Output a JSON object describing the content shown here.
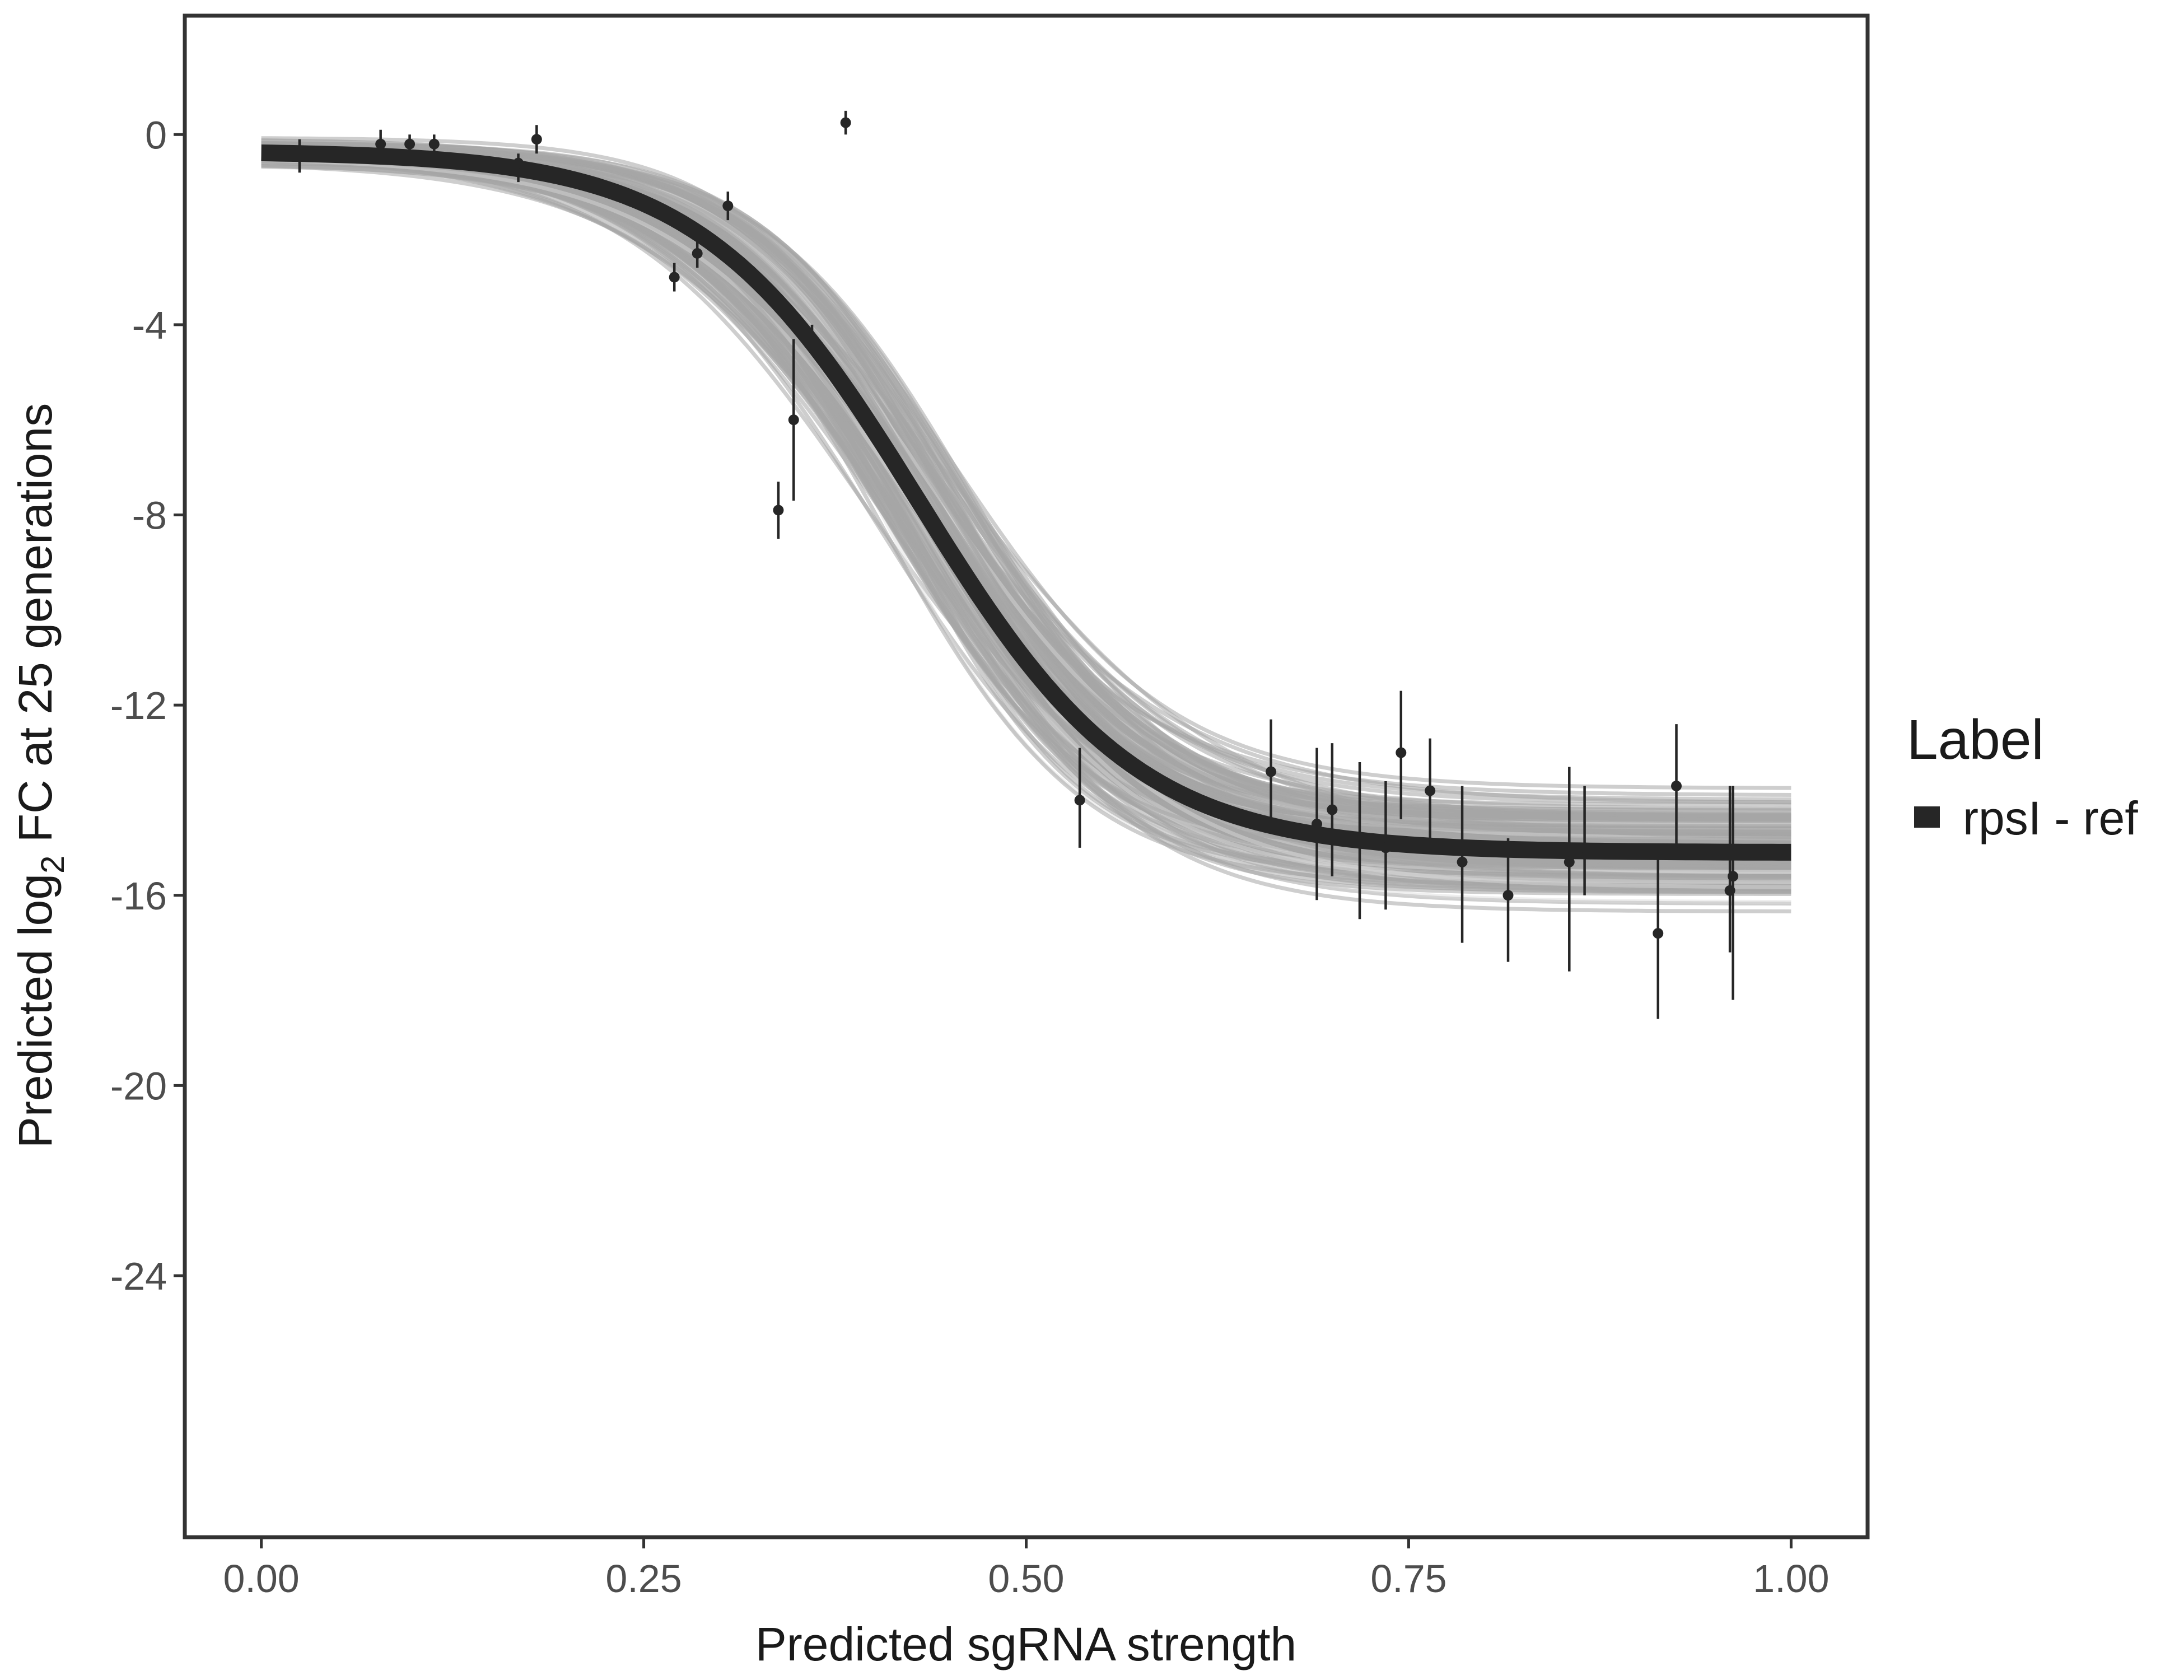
{
  "chart_data": {
    "type": "line",
    "title": "",
    "xlabel": "Predicted sgRNA strength",
    "ylabel_parts": [
      "Predicted  log",
      "2",
      " FC at 25 generations"
    ],
    "xlim": [
      -0.05,
      1.05
    ],
    "ylim": [
      -29.5,
      2.5
    ],
    "x_ticks": [
      0.0,
      0.25,
      0.5,
      0.75,
      1.0
    ],
    "x_tick_labels": [
      "0.00",
      "0.25",
      "0.50",
      "0.75",
      "1.00"
    ],
    "y_ticks": [
      0,
      -4,
      -8,
      -12,
      -16,
      -20,
      -24
    ],
    "y_tick_labels": [
      "0",
      "-4",
      "-8",
      "-12",
      "-16",
      "-20",
      "-24"
    ],
    "grid": false,
    "legend": {
      "title": "Label",
      "entries": [
        {
          "label": "rpsI - ref",
          "color": "#262626"
        }
      ],
      "position": "right"
    },
    "fit_curve": {
      "name": "rpsI - ref",
      "model": "logistic",
      "upper": -0.35,
      "lower": -15.1,
      "midpoint": 0.43,
      "slope": 14,
      "color": "#262626"
    },
    "posterior_draws": {
      "description": "ensemble of sampled logistic curves",
      "color": "#a6a6a6",
      "upper_range": [
        -1.1,
        0.0
      ],
      "lower_range": [
        -17.2,
        -13.0
      ],
      "midpoint_range": [
        0.36,
        0.52
      ],
      "slope_range": [
        9,
        22
      ]
    },
    "points": [
      {
        "x": 0.025,
        "y": -0.4,
        "lo": -0.8,
        "hi": -0.1
      },
      {
        "x": 0.078,
        "y": -0.2,
        "lo": -0.5,
        "hi": 0.1
      },
      {
        "x": 0.097,
        "y": -0.2,
        "lo": -0.5,
        "hi": 0.0
      },
      {
        "x": 0.113,
        "y": -0.2,
        "lo": -0.5,
        "hi": 0.0
      },
      {
        "x": 0.168,
        "y": -0.6,
        "lo": -1.0,
        "hi": -0.4
      },
      {
        "x": 0.18,
        "y": -0.1,
        "lo": -0.4,
        "hi": 0.2
      },
      {
        "x": 0.27,
        "y": -3.0,
        "lo": -3.3,
        "hi": -2.7
      },
      {
        "x": 0.285,
        "y": -2.5,
        "lo": -2.8,
        "hi": -2.2
      },
      {
        "x": 0.305,
        "y": -1.5,
        "lo": -1.8,
        "hi": -1.2
      },
      {
        "x": 0.338,
        "y": -7.9,
        "lo": -8.5,
        "hi": -7.3
      },
      {
        "x": 0.348,
        "y": -6.0,
        "lo": -7.7,
        "hi": -4.3
      },
      {
        "x": 0.36,
        "y": -4.3,
        "lo": -4.6,
        "hi": -4.0
      },
      {
        "x": 0.382,
        "y": 0.25,
        "lo": 0.0,
        "hi": 0.5
      },
      {
        "x": 0.535,
        "y": -14.0,
        "lo": -15.0,
        "hi": -12.9
      },
      {
        "x": 0.66,
        "y": -13.4,
        "lo": -14.4,
        "hi": -12.3
      },
      {
        "x": 0.69,
        "y": -14.5,
        "lo": -16.1,
        "hi": -12.9
      },
      {
        "x": 0.7,
        "y": -14.2,
        "lo": -15.6,
        "hi": -12.8
      },
      {
        "x": 0.718,
        "y": -14.9,
        "lo": -16.5,
        "hi": -13.2
      },
      {
        "x": 0.735,
        "y": -15.0,
        "lo": -16.3,
        "hi": -13.6
      },
      {
        "x": 0.745,
        "y": -13.0,
        "lo": -14.4,
        "hi": -11.7
      },
      {
        "x": 0.764,
        "y": -13.8,
        "lo": -14.8,
        "hi": -12.7
      },
      {
        "x": 0.785,
        "y": -15.3,
        "lo": -17.0,
        "hi": -13.7
      },
      {
        "x": 0.815,
        "y": -16.0,
        "lo": -17.4,
        "hi": -14.8
      },
      {
        "x": 0.855,
        "y": -15.3,
        "lo": -17.6,
        "hi": -13.3
      },
      {
        "x": 0.865,
        "y": -15.0,
        "lo": -16.0,
        "hi": -13.7
      },
      {
        "x": 0.913,
        "y": -16.8,
        "lo": -18.6,
        "hi": -15.2
      },
      {
        "x": 0.925,
        "y": -13.7,
        "lo": -15.0,
        "hi": -12.4
      },
      {
        "x": 0.96,
        "y": -15.9,
        "lo": -17.2,
        "hi": -13.7
      },
      {
        "x": 0.962,
        "y": -15.6,
        "lo": -18.2,
        "hi": -13.7
      }
    ]
  }
}
